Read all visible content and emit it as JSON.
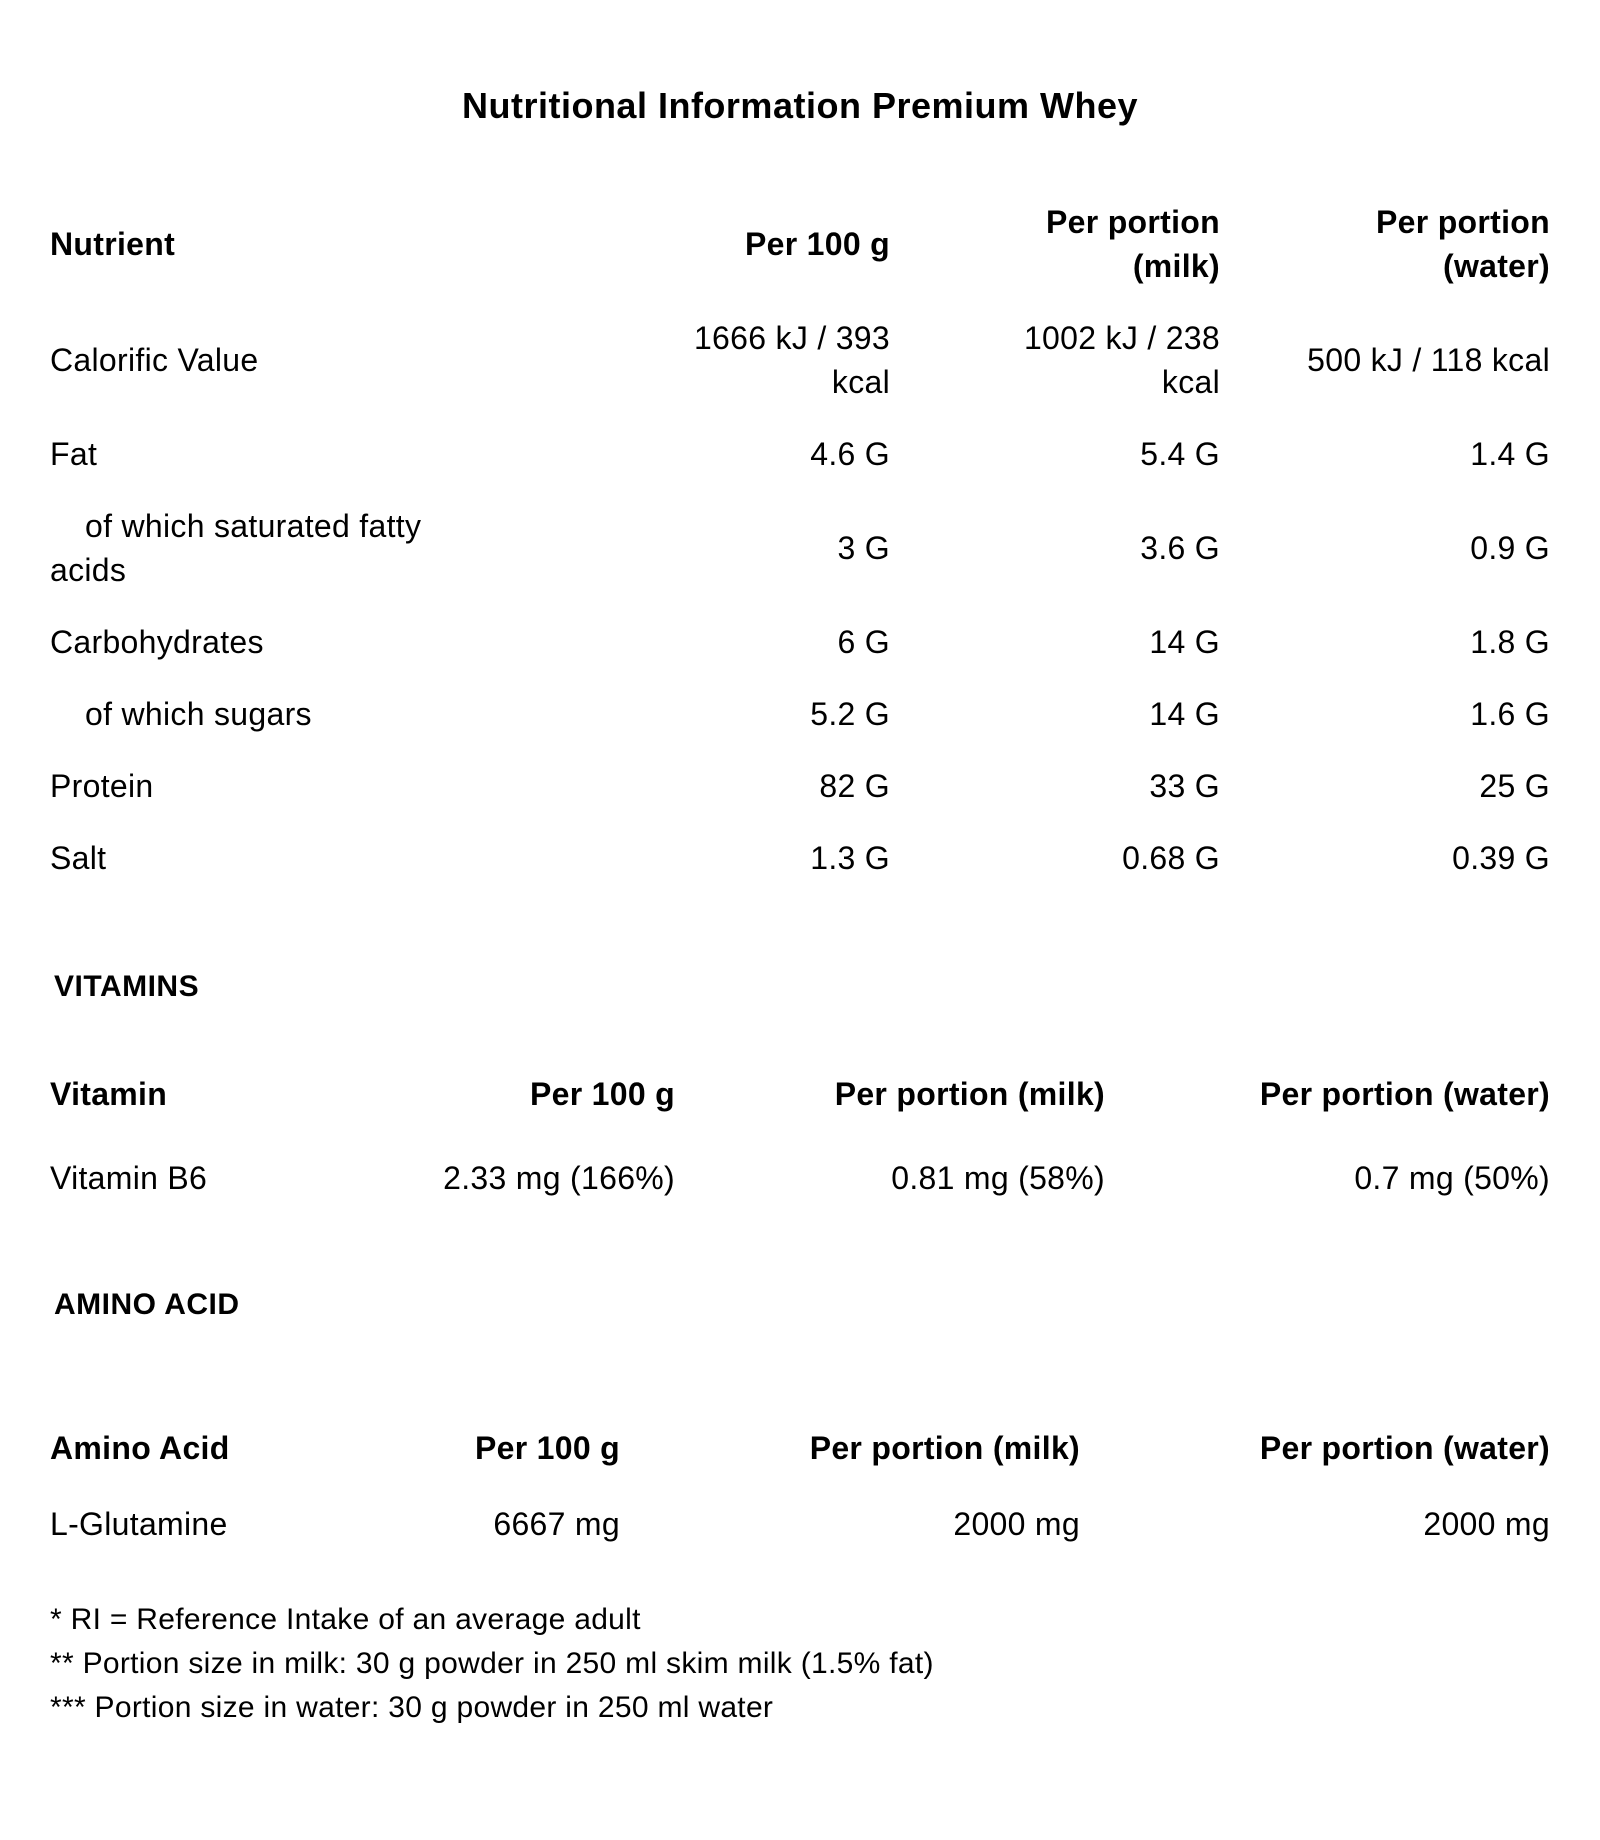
{
  "title": "Nutritional Information Premium Whey",
  "nutrition_table": {
    "headers": [
      "Nutrient",
      "Per 100 g",
      "Per portion (milk)",
      "Per portion (water)"
    ],
    "rows": [
      {
        "label": "Calorific Value",
        "per_100g": "1666 kJ / 393 kcal",
        "per_portion_milk": "1002 kJ / 238 kcal",
        "per_portion_water": "500 kJ / 118 kcal"
      },
      {
        "label": "Fat",
        "per_100g": "4.6 G",
        "per_portion_milk": "5.4 G",
        "per_portion_water": "1.4 G"
      },
      {
        "label": "of which saturated fatty acids",
        "per_100g": "3 G",
        "per_portion_milk": "3.6 G",
        "per_portion_water": "0.9 G"
      },
      {
        "label": "Carbohydrates",
        "per_100g": "6 G",
        "per_portion_milk": "14 G",
        "per_portion_water": "1.8 G"
      },
      {
        "label": "of which sugars",
        "per_100g": "5.2 G",
        "per_portion_milk": "14 G",
        "per_portion_water": "1.6 G"
      },
      {
        "label": "Protein",
        "per_100g": "82 G",
        "per_portion_milk": "33 G",
        "per_portion_water": "25 G"
      },
      {
        "label": "Salt",
        "per_100g": "1.3 G",
        "per_portion_milk": "0.68 G",
        "per_portion_water": "0.39 G"
      }
    ]
  },
  "vitamins": {
    "heading": "VITAMINS",
    "headers": [
      "Vitamin",
      "Per 100 g",
      "Per portion (milk)",
      "Per portion (water)"
    ],
    "rows": [
      {
        "label": "Vitamin B6",
        "per_100g": "2.33 mg (166%)",
        "per_portion_milk": "0.81 mg (58%)",
        "per_portion_water": "0.7 mg (50%)"
      }
    ]
  },
  "amino_acids": {
    "heading": "AMINO ACID",
    "headers": [
      "Amino Acid",
      "Per 100 g",
      "Per portion (milk)",
      "Per portion (water)"
    ],
    "rows": [
      {
        "label": "L-Glutamine",
        "per_100g": "6667 mg",
        "per_portion_milk": "2000 mg",
        "per_portion_water": "2000 mg"
      }
    ]
  },
  "footnotes": [
    "* RI = Reference Intake of an average adult",
    "** Portion size in milk: 30 g powder in 250 ml skim milk (1.5% fat)",
    "*** Portion size in water: 30 g powder in 250 ml water"
  ]
}
